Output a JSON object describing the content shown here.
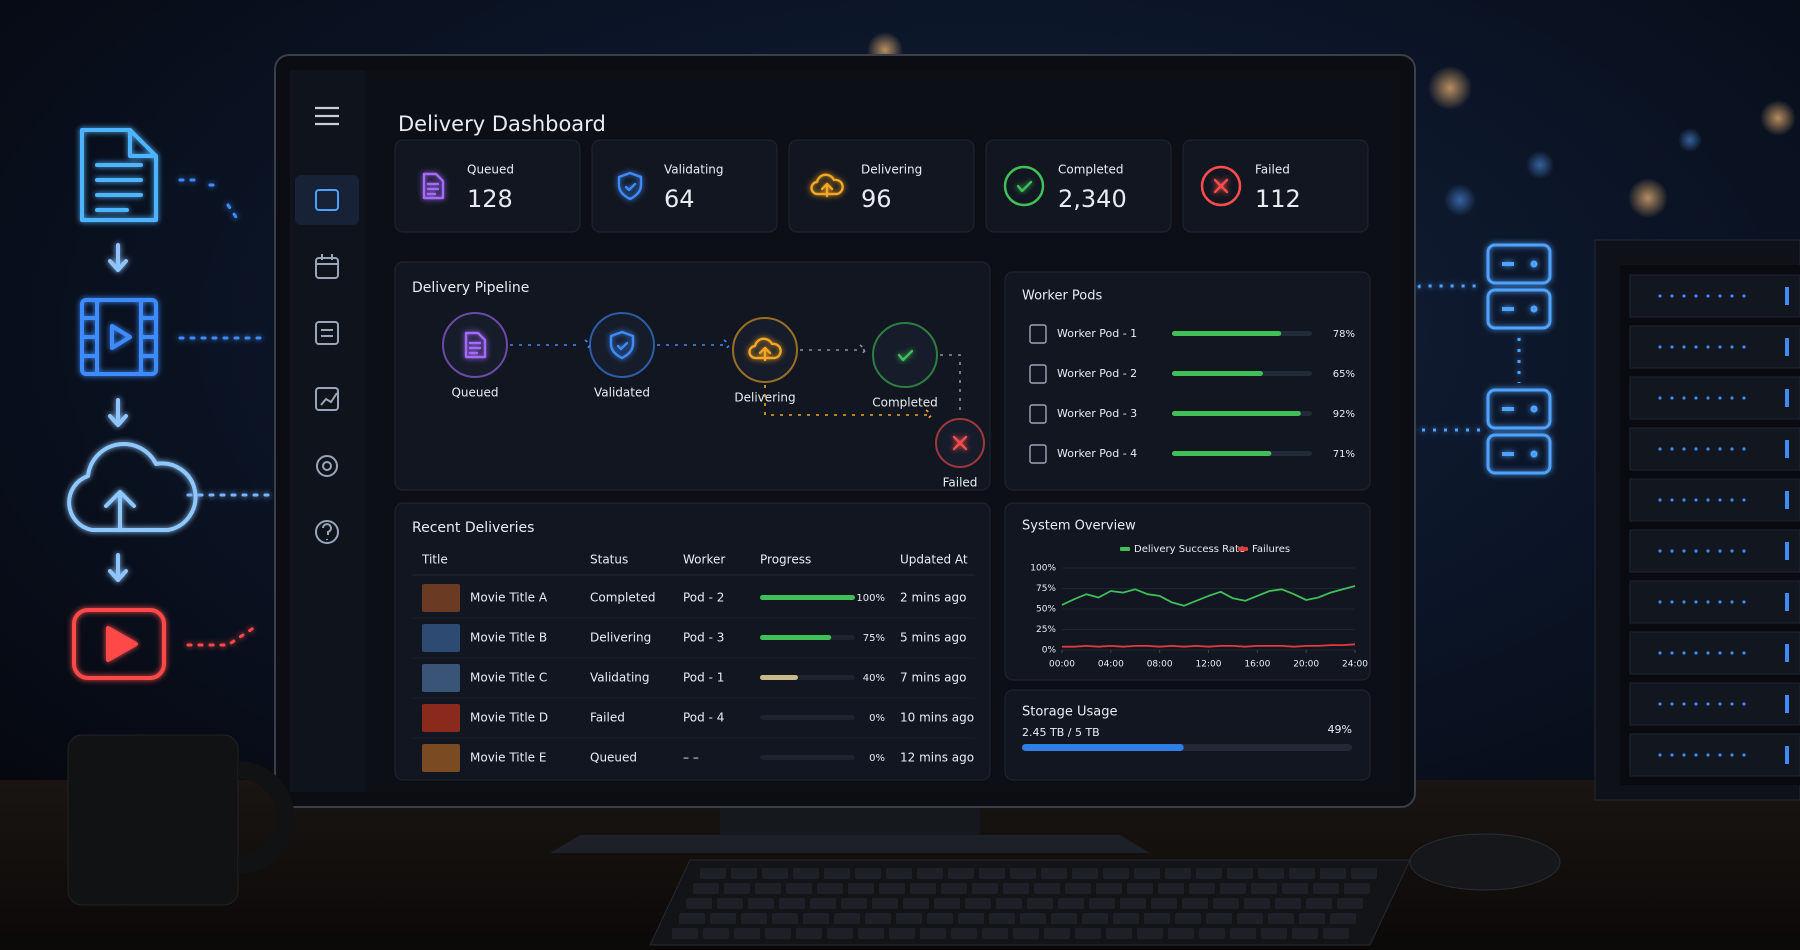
{
  "header": {
    "title": "Delivery Dashboard"
  },
  "stats": [
    {
      "label": "Queued",
      "value": "128"
    },
    {
      "label": "Validating",
      "value": "64"
    },
    {
      "label": "Delivering",
      "value": "96"
    },
    {
      "label": "Completed",
      "value": "2,340"
    },
    {
      "label": "Failed",
      "value": "112"
    }
  ],
  "pipeline": {
    "title": "Delivery Pipeline",
    "stages": [
      "Queued",
      "Validated",
      "Delivering",
      "Completed",
      "Failed"
    ]
  },
  "worker_pods": {
    "title": "Worker Pods",
    "pods": [
      {
        "name": "Worker Pod - 1",
        "percent": 78,
        "percent_label": "78%"
      },
      {
        "name": "Worker Pod - 2",
        "percent": 65,
        "percent_label": "65%"
      },
      {
        "name": "Worker Pod - 3",
        "percent": 92,
        "percent_label": "92%"
      },
      {
        "name": "Worker Pod - 4",
        "percent": 71,
        "percent_label": "71%"
      }
    ]
  },
  "recent_deliveries": {
    "title": "Recent Deliveries",
    "columns": [
      "Title",
      "Status",
      "Worker",
      "Progress",
      "Updated At"
    ],
    "rows": [
      {
        "title": "Movie Title A",
        "status": "Completed",
        "worker": "Pod - 2",
        "progress": 100,
        "progress_label": "100%",
        "updated": "2 mins ago"
      },
      {
        "title": "Movie Title B",
        "status": "Delivering",
        "worker": "Pod - 3",
        "progress": 75,
        "progress_label": "75%",
        "updated": "5 mins ago"
      },
      {
        "title": "Movie Title C",
        "status": "Validating",
        "worker": "Pod - 1",
        "progress": 40,
        "progress_label": "40%",
        "updated": "7 mins ago"
      },
      {
        "title": "Movie Title D",
        "status": "Failed",
        "worker": "Pod - 4",
        "progress": 0,
        "progress_label": "0%",
        "updated": "10 mins ago"
      },
      {
        "title": "Movie Title E",
        "status": "Queued",
        "worker": "– –",
        "progress": 0,
        "progress_label": "0%",
        "updated": "12 mins ago"
      }
    ]
  },
  "chart_data": {
    "type": "line",
    "title": "System Overview",
    "x": [
      0,
      1,
      2,
      3,
      4,
      5,
      6,
      7,
      8,
      9,
      10,
      11,
      12,
      13,
      14,
      15,
      16,
      17,
      18,
      19,
      20,
      21,
      22,
      23,
      24
    ],
    "series": [
      {
        "name": "Delivery Success Rate",
        "color": "#3fbf57",
        "values": [
          55,
          62,
          68,
          64,
          72,
          70,
          74,
          68,
          66,
          58,
          54,
          60,
          66,
          71,
          63,
          60,
          66,
          72,
          74,
          68,
          61,
          64,
          70,
          74,
          78
        ]
      },
      {
        "name": "Failures",
        "color": "#e5393b",
        "values": [
          4,
          4,
          5,
          4,
          5,
          4,
          5,
          5,
          4,
          5,
          4,
          5,
          4,
          5,
          5,
          4,
          5,
          5,
          5,
          4,
          5,
          5,
          6,
          6,
          7
        ]
      }
    ],
    "xlim": [
      0,
      24
    ],
    "xticks": [
      {
        "value": 0,
        "label": "00:00"
      },
      {
        "value": 4,
        "label": "04:00"
      },
      {
        "value": 8,
        "label": "08:00"
      },
      {
        "value": 12,
        "label": "12:00"
      },
      {
        "value": 16,
        "label": "16:00"
      },
      {
        "value": 20,
        "label": "20:00"
      },
      {
        "value": 24,
        "label": "24:00"
      }
    ],
    "ylim": [
      0,
      100
    ],
    "yticks": [
      {
        "value": 0,
        "label": "0%"
      },
      {
        "value": 25,
        "label": "25%"
      },
      {
        "value": 50,
        "label": "50%"
      },
      {
        "value": 75,
        "label": "75%"
      },
      {
        "value": 100,
        "label": "100%"
      }
    ],
    "grid": true
  },
  "storage": {
    "title": "Storage Usage",
    "detail": "2.45 TB / 5 TB",
    "percent": 49,
    "percent_label": "49%"
  }
}
